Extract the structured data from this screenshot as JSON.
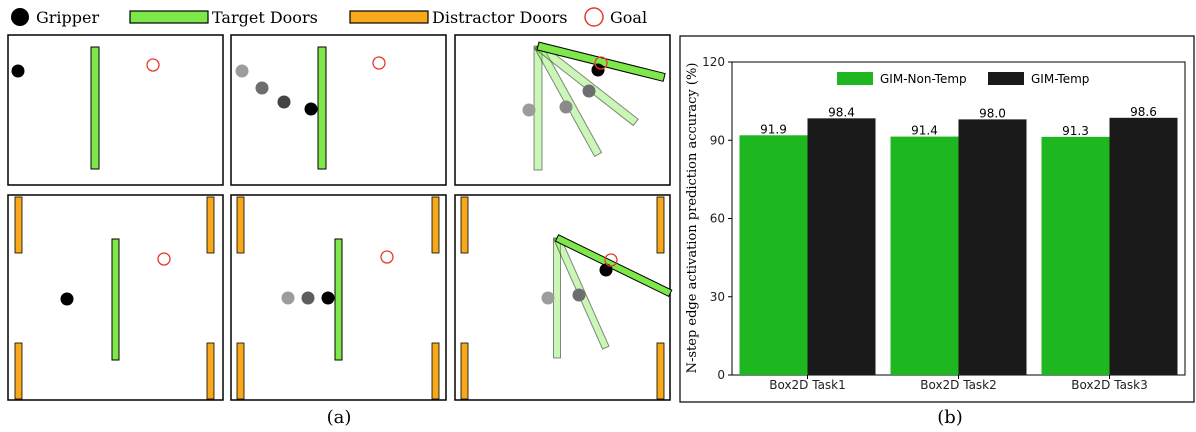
{
  "legend": {
    "gripper": "Gripper",
    "target_doors": "Target Doors",
    "distractor_doors": "Distractor Doors",
    "goal": "Goal"
  },
  "panel_labels": {
    "a": "(a)",
    "b": "(b)"
  },
  "colors": {
    "target_door": "#7ee84a",
    "distractor_door": "#f7a81b",
    "goal": "#e83a2a",
    "gripper": "#000000",
    "bar_non_temp": "#1fb71f",
    "bar_temp": "#1a1a1a"
  },
  "chart_data": {
    "type": "bar",
    "categories": [
      "Box2D Task1",
      "Box2D Task2",
      "Box2D Task3"
    ],
    "series": [
      {
        "name": "GIM-Non-Temp",
        "values": [
          91.9,
          91.4,
          91.3
        ],
        "labels": [
          "91.9",
          "91.4",
          "91.3"
        ]
      },
      {
        "name": "GIM-Temp",
        "values": [
          98.4,
          98.0,
          98.6
        ],
        "labels": [
          "98.4",
          "98.0",
          "98.6"
        ]
      }
    ],
    "ylabel": "N-step edge activation prediction accuracy (%)",
    "xlabel": "",
    "ylim": [
      0,
      120
    ],
    "yticks": [
      0,
      30,
      60,
      90,
      120
    ],
    "legend_position": "top-center",
    "grid": false
  }
}
